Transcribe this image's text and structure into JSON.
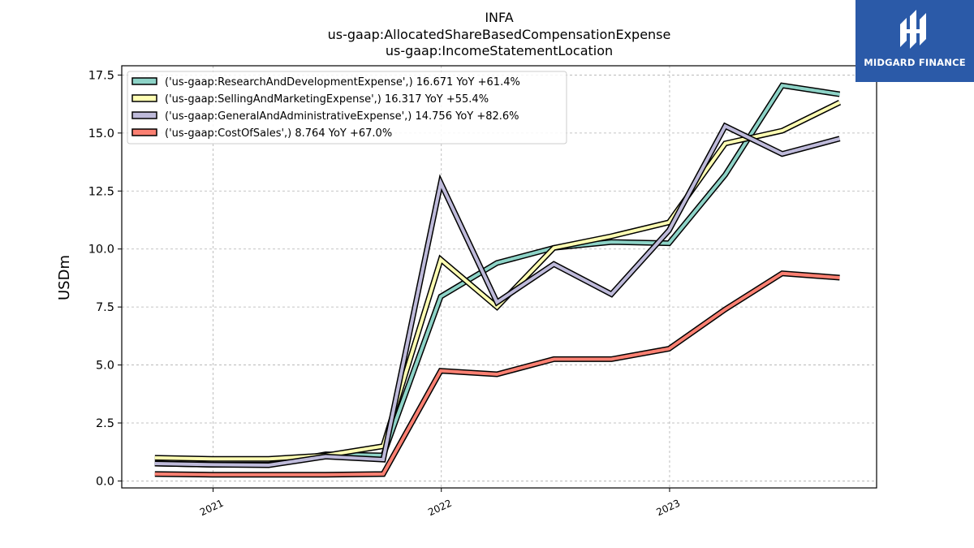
{
  "brand": {
    "name": "MIDGARD FINANCE",
    "color": "#2b5aa8"
  },
  "chart_data": {
    "type": "line",
    "title_lines": [
      "INFA",
      "us-gaap:AllocatedShareBasedCompensationExpense",
      "us-gaap:IncomeStatementLocation"
    ],
    "xlabel": "",
    "ylabel": "USDm",
    "ylim": [
      -0.3,
      17.9
    ],
    "yticks": [
      0.0,
      2.5,
      5.0,
      7.5,
      10.0,
      12.5,
      15.0,
      17.5
    ],
    "ytick_labels": [
      "0.0",
      "2.5",
      "5.0",
      "7.5",
      "10.0",
      "12.5",
      "15.0",
      "17.5"
    ],
    "xlim": [
      "2020-08-08",
      "2023-11-28"
    ],
    "xticks": [
      "2021-01-01",
      "2022-01-01",
      "2023-01-01"
    ],
    "xtick_labels": [
      "2021",
      "2022",
      "2023"
    ],
    "grid": true,
    "legend_position": "upper-left",
    "x": [
      "2020-09-30",
      "2020-12-31",
      "2021-03-31",
      "2021-06-30",
      "2021-09-30",
      "2021-12-31",
      "2022-03-31",
      "2022-06-30",
      "2022-09-30",
      "2022-12-31",
      "2023-03-31",
      "2023-06-30",
      "2023-09-30"
    ],
    "series": [
      {
        "name": "('us-gaap:ResearchAndDevelopmentExpense',) 16.671 YoY +61.4%",
        "color": "#8dd3c7",
        "values": [
          0.75,
          0.7,
          0.7,
          1.15,
          1.1,
          7.95,
          9.4,
          10.05,
          10.3,
          10.25,
          13.2,
          17.05,
          16.671
        ]
      },
      {
        "name": "('us-gaap:SellingAndMarketingExpense',) 16.317 YoY +55.4%",
        "color": "#ffffb3",
        "values": [
          1.0,
          0.95,
          0.95,
          1.1,
          1.5,
          9.55,
          7.5,
          10.05,
          10.55,
          11.15,
          14.55,
          15.1,
          16.317
        ]
      },
      {
        "name": "('us-gaap:GeneralAndAdministrativeExpense',) 14.756 YoY +82.6%",
        "color": "#bebada",
        "values": [
          0.75,
          0.7,
          0.68,
          1.05,
          0.92,
          12.85,
          7.7,
          9.35,
          8.05,
          10.8,
          15.3,
          14.1,
          14.756
        ]
      },
      {
        "name": "('us-gaap:CostOfSales',) 8.764 YoY +67.0%",
        "color": "#fb8072",
        "values": [
          0.3,
          0.27,
          0.27,
          0.27,
          0.3,
          4.75,
          4.6,
          5.25,
          5.25,
          5.7,
          7.4,
          8.95,
          8.764
        ]
      }
    ]
  }
}
